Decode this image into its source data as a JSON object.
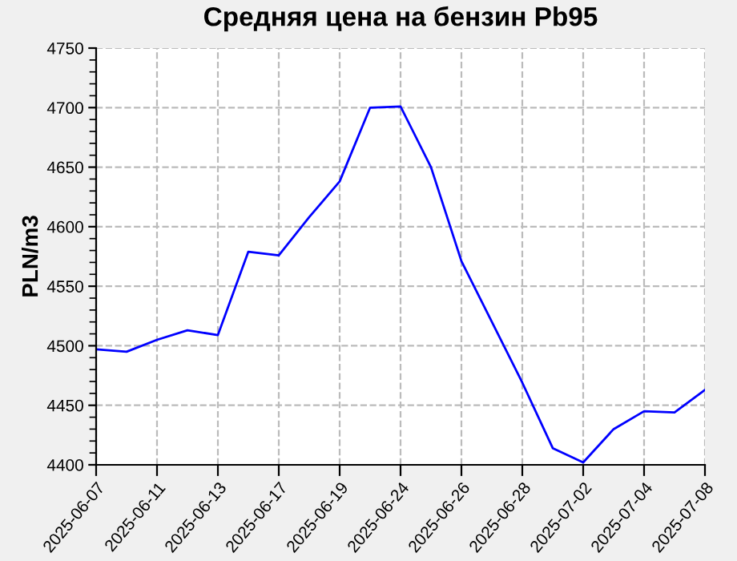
{
  "chart_data": {
    "type": "line",
    "title": "Средняя цена на бензин Pb95",
    "ylabel": "PLN/m3",
    "categories": [
      "2025-06-07",
      null,
      "2025-06-11",
      null,
      "2025-06-13",
      null,
      "2025-06-17",
      null,
      "2025-06-19",
      null,
      "2025-06-24",
      null,
      "2025-06-26",
      null,
      "2025-06-28",
      null,
      "2025-07-02",
      null,
      "2025-07-04",
      null,
      "2025-07-08"
    ],
    "series": [
      {
        "color": "#0000ff",
        "values": [
          4497,
          4495,
          4505,
          4513,
          4509,
          4579,
          4576,
          4608,
          4638,
          4700,
          4701,
          4650,
          4571,
          4520,
          4469,
          4414,
          4402,
          4430,
          4445,
          4444,
          4463
        ]
      }
    ],
    "ylim": [
      4400,
      4750
    ],
    "yticks": [
      4400,
      4450,
      4500,
      4550,
      4600,
      4650,
      4700,
      4750
    ],
    "grid": true,
    "line_style": "solid",
    "marker": "none",
    "legend": false
  }
}
